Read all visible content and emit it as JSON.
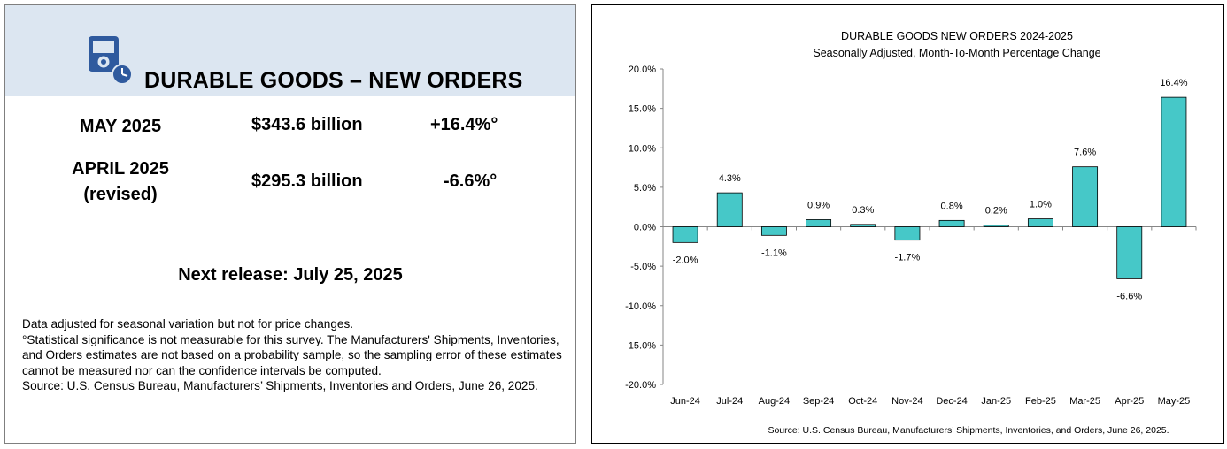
{
  "info_panel": {
    "title": "DURABLE GOODS – NEW ORDERS",
    "icon": "clock-document-icon",
    "rows": [
      {
        "period": "MAY 2025",
        "period_note": "",
        "value": "$343.6 billion",
        "change": "+16.4%°"
      },
      {
        "period": "APRIL 2025",
        "period_note": "(revised)",
        "value": "$295.3 billion",
        "change": "-6.6%°"
      }
    ],
    "next_release": "Next release:  July 25, 2025",
    "notes": [
      "Data adjusted for seasonal variation but not for price changes.",
      "°Statistical significance is not measurable for this survey.  The Manufacturers' Shipments, Inventories, and Orders estimates are not based on a probability sample, so the sampling error of these estimates cannot be measured nor can the confidence intervals be computed.",
      "Source: U.S. Census Bureau, Manufacturers’ Shipments, Inventories and Orders, June 26, 2025."
    ],
    "colors": {
      "header_bg": "#dce6f1",
      "icon_blue": "#2f5a9e"
    }
  },
  "chart_data": {
    "type": "bar",
    "title": "DURABLE GOODS NEW ORDERS 2024-2025",
    "subtitle": "Seasonally Adjusted,  Month-To-Month Percentage Change",
    "categories": [
      "Jun-24",
      "Jul-24",
      "Aug-24",
      "Sep-24",
      "Oct-24",
      "Nov-24",
      "Dec-24",
      "Jan-25",
      "Feb-25",
      "Mar-25",
      "Apr-25",
      "May-25"
    ],
    "values": [
      -2.0,
      4.3,
      -1.1,
      0.9,
      0.3,
      -1.7,
      0.8,
      0.2,
      1.0,
      7.6,
      -6.6,
      16.4
    ],
    "data_labels": [
      "-2.0%",
      "4.3%",
      "-1.1%",
      "0.9%",
      "0.3%",
      "-1.7%",
      "0.8%",
      "0.2%",
      "1.0%",
      "7.6%",
      "-6.6%",
      "16.4%"
    ],
    "ylim": [
      -20,
      20
    ],
    "yticks": [
      20,
      15,
      10,
      5,
      0,
      -5,
      -10,
      -15,
      -20
    ],
    "ytick_labels": [
      "20.0%",
      "15.0%",
      "10.0%",
      "5.0%",
      "0.0%",
      "-5.0%",
      "-10.0%",
      "-15.0%",
      "-20.0%"
    ],
    "source": "Source: U.S. Census Bureau, Manufacturers’ Shipments, Inventories, and Orders, June 26, 2025.",
    "grid": false,
    "legend": "none",
    "bar_color": "#46c8c8",
    "bar_edge": "#000000"
  }
}
